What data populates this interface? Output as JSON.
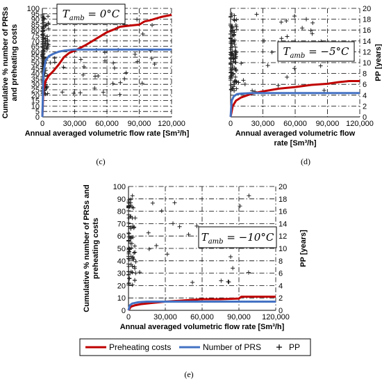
{
  "chart_data": [
    {
      "type": "line",
      "panel_label": "(c)",
      "annotation": "T_amb = 0°C",
      "annotation_parts": {
        "base": "T",
        "sub": "amb",
        "rest": " = 0°C"
      },
      "xlabel": "Annual averaged volumetric flow rate [Sm³/h]",
      "ylabel_left": [
        "Cumulative % number of PRSs",
        "and preheating costs"
      ],
      "xlim": [
        0,
        120000
      ],
      "ylim_left": [
        0,
        100
      ],
      "xticks": [
        "0",
        "30,000",
        "60,000",
        "90,000",
        "120,000"
      ],
      "yticks_left": [
        "0",
        "5",
        "10",
        "15",
        "20",
        "25",
        "30",
        "35",
        "40",
        "45",
        "50",
        "55",
        "60",
        "65",
        "70",
        "75",
        "80",
        "85",
        "90",
        "95",
        "100"
      ],
      "grid": true,
      "series": [
        {
          "name": "Preheating costs",
          "axis": "left",
          "color": "#c00000",
          "x": [
            0,
            1000,
            3000,
            6000,
            10000,
            15000,
            20000,
            25000,
            30000,
            40000,
            50000,
            60000,
            70000,
            72000,
            80000,
            90000,
            95000,
            100000,
            110000,
            120000
          ],
          "y": [
            0,
            25,
            33,
            38,
            42,
            48,
            55,
            59,
            61,
            66,
            72,
            78,
            82,
            83,
            84,
            85,
            88,
            89,
            92,
            94
          ]
        },
        {
          "name": "Number of PRS",
          "axis": "left",
          "color": "#4472c4",
          "x": [
            0,
            1000,
            3000,
            6000,
            10000,
            15000,
            20000,
            30000,
            120000
          ],
          "y": [
            0,
            40,
            52,
            56,
            58,
            60,
            61,
            62,
            62
          ]
        }
      ]
    },
    {
      "type": "line",
      "panel_label": "(d)",
      "annotation": "T_amb = −5°C",
      "annotation_parts": {
        "base": "T",
        "sub": "amb",
        "rest": " = −5°C"
      },
      "xlabel": [
        "Annual averaged volumetric flow",
        "rate [Sm³/h]"
      ],
      "ylabel_right": "PP [years]",
      "xlim": [
        0,
        120000
      ],
      "ylim_right": [
        0,
        20
      ],
      "xticks": [
        "0",
        "30,000",
        "60,000",
        "90,000",
        "120,000"
      ],
      "yticks_right": [
        "0",
        "2",
        "4",
        "6",
        "8",
        "10",
        "12",
        "14",
        "16",
        "18",
        "20"
      ],
      "grid": true,
      "series": [
        {
          "name": "Preheating costs",
          "axis": "right",
          "color": "#c00000",
          "x": [
            0,
            2000,
            5000,
            10000,
            20000,
            30000,
            45000,
            60000,
            75000,
            90000,
            100000,
            110000,
            120000
          ],
          "y": [
            0,
            2,
            3,
            3.6,
            4.3,
            4.7,
            5.2,
            5.5,
            5.9,
            6.1,
            6.4,
            6.6,
            6.6
          ]
        },
        {
          "name": "Number of PRS",
          "axis": "right",
          "color": "#4472c4",
          "x": [
            0,
            1000,
            3000,
            6000,
            10000,
            20000,
            120000
          ],
          "y": [
            0,
            3,
            3.8,
            4.2,
            4.3,
            4.4,
            4.4
          ]
        }
      ]
    },
    {
      "type": "line",
      "panel_label": "(e)",
      "annotation": "T_amb = −10°C",
      "annotation_parts": {
        "base": "T",
        "sub": "amb",
        "rest": " = −10°C"
      },
      "xlabel": "Annual averaged volumetric flow rate [Sm³/h]",
      "ylabel_left": [
        "Cumulative % number of PRSs and",
        "preheating costs"
      ],
      "ylabel_right": "PP [years]",
      "xlim": [
        0,
        120000
      ],
      "ylim_left": [
        0,
        100
      ],
      "ylim_right": [
        0,
        20
      ],
      "xticks": [
        "0",
        "30,000",
        "60,000",
        "90,000",
        "120,000"
      ],
      "yticks_left": [
        "0",
        "10",
        "20",
        "30",
        "40",
        "50",
        "60",
        "70",
        "80",
        "90",
        "100"
      ],
      "yticks_right": [
        "0",
        "2",
        "4",
        "6",
        "8",
        "10",
        "12",
        "14",
        "16",
        "18",
        "20"
      ],
      "grid": true,
      "series": [
        {
          "name": "Preheating costs",
          "axis": "left",
          "color": "#c00000",
          "x": [
            0,
            2000,
            5000,
            10000,
            20000,
            30000,
            45000,
            60000,
            75000,
            90000,
            92000,
            100000,
            120000
          ],
          "y": [
            0,
            3,
            4,
            5,
            6,
            7,
            8,
            9,
            9,
            9.5,
            11,
            11,
            11
          ]
        },
        {
          "name": "Number of PRS",
          "axis": "left",
          "color": "#4472c4",
          "x": [
            0,
            1000,
            3000,
            8000,
            15000,
            120000
          ],
          "y": [
            0,
            4,
            5.5,
            6.5,
            7,
            7
          ]
        }
      ]
    }
  ],
  "legend": {
    "items": [
      {
        "label": "Preheating costs",
        "color": "#c00000",
        "kind": "line"
      },
      {
        "label": "Number of PRS",
        "color": "#4472c4",
        "kind": "line"
      },
      {
        "label": "PP",
        "color": "#000000",
        "kind": "plus"
      }
    ]
  }
}
